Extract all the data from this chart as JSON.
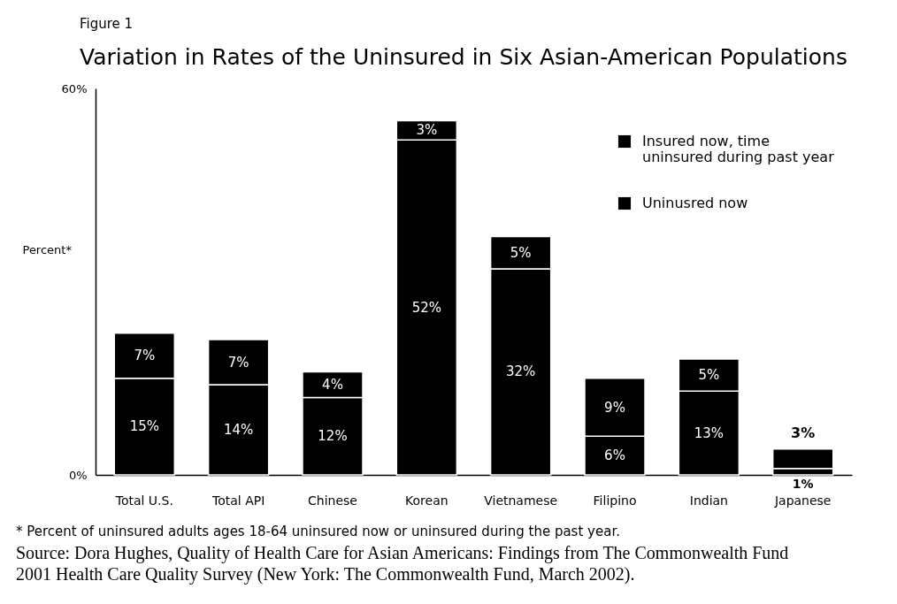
{
  "chart_data": {
    "type": "bar",
    "stacked": true,
    "title": "Variation in Rates of the Uninsured in Six Asian-American Populations",
    "ylabel": "Percent*",
    "categories": [
      "Total U.S.",
      "Total API",
      "Chinese",
      "Korean",
      "Vietnamese",
      "Filipino",
      "Indian",
      "Japanese"
    ],
    "series": [
      {
        "name": "Uninusred now",
        "color": "#000000",
        "values": [
          15,
          14,
          12,
          52,
          32,
          6,
          13,
          1
        ],
        "value_labels": [
          "15%",
          "14%",
          "12%",
          "52%",
          "32%",
          "6%",
          "13%",
          "1%"
        ]
      },
      {
        "name": "Insured now, time uninsured during past year",
        "color": "#000000",
        "values": [
          7,
          7,
          4,
          3,
          5,
          9,
          5,
          3
        ],
        "value_labels": [
          "7%",
          "7%",
          "4%",
          "3%",
          "5%",
          "9%",
          "5%",
          "3%"
        ]
      }
    ],
    "ylim": [
      0,
      60
    ],
    "yticks": [
      {
        "value": 0,
        "label": "0%"
      },
      {
        "value": 60,
        "label": "60%"
      }
    ],
    "legend": "top right",
    "annotations": [
      "Figure 1",
      "* Percent of uninsured adults ages 18-64 uninsured now or uninsured during the past year.",
      "Source: Dora Hughes, Quality of Health Care for Asian Americans: Findings from The Commonwealth Fund 2001 Health Care Quality Survey (New York: The Commonwealth Fund, March 2002)."
    ]
  }
}
